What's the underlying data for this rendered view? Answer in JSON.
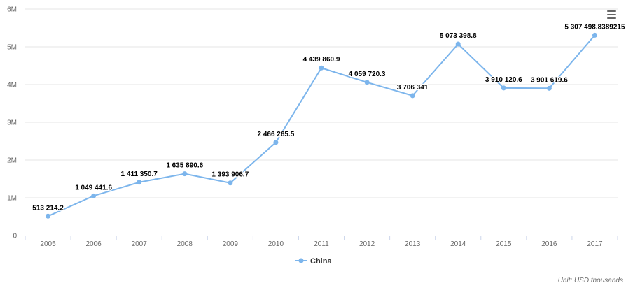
{
  "chart_data": {
    "type": "line",
    "title": "",
    "xlabel": "",
    "ylabel": "",
    "categories": [
      "2005",
      "2006",
      "2007",
      "2008",
      "2009",
      "2010",
      "2011",
      "2012",
      "2013",
      "2014",
      "2015",
      "2016",
      "2017"
    ],
    "series": [
      {
        "name": "China",
        "color": "#7cb5ec",
        "values": [
          513214.2,
          1049441.6,
          1411350.7,
          1635890.6,
          1393906.7,
          2466265.5,
          4439860.9,
          4059720.3,
          3706341,
          5073398.8,
          3910120.6,
          3901619.6,
          5307498.8389215
        ],
        "labels": [
          "513 214.2",
          "1 049 441.6",
          "1 411 350.7",
          "1 635 890.6",
          "1 393 906.7",
          "2 466 265.5",
          "4 439 860.9",
          "4 059 720.3",
          "3 706 341",
          "5 073 398.8",
          "3 910 120.6",
          "3 901 619.6",
          "5 307 498.8389215"
        ]
      }
    ],
    "ylim": [
      0,
      6000000
    ],
    "y_ticks": [
      {
        "value": 0,
        "label": "0"
      },
      {
        "value": 1000000,
        "label": "1M"
      },
      {
        "value": 2000000,
        "label": "2M"
      },
      {
        "value": 3000000,
        "label": "3M"
      },
      {
        "value": 4000000,
        "label": "4M"
      },
      {
        "value": 5000000,
        "label": "5M"
      },
      {
        "value": 6000000,
        "label": "6M"
      }
    ],
    "grid": true,
    "legend_position": "bottom-center"
  },
  "menu": {
    "icon": "hamburger-menu-icon"
  },
  "unit_note": "Unit: USD thousands"
}
